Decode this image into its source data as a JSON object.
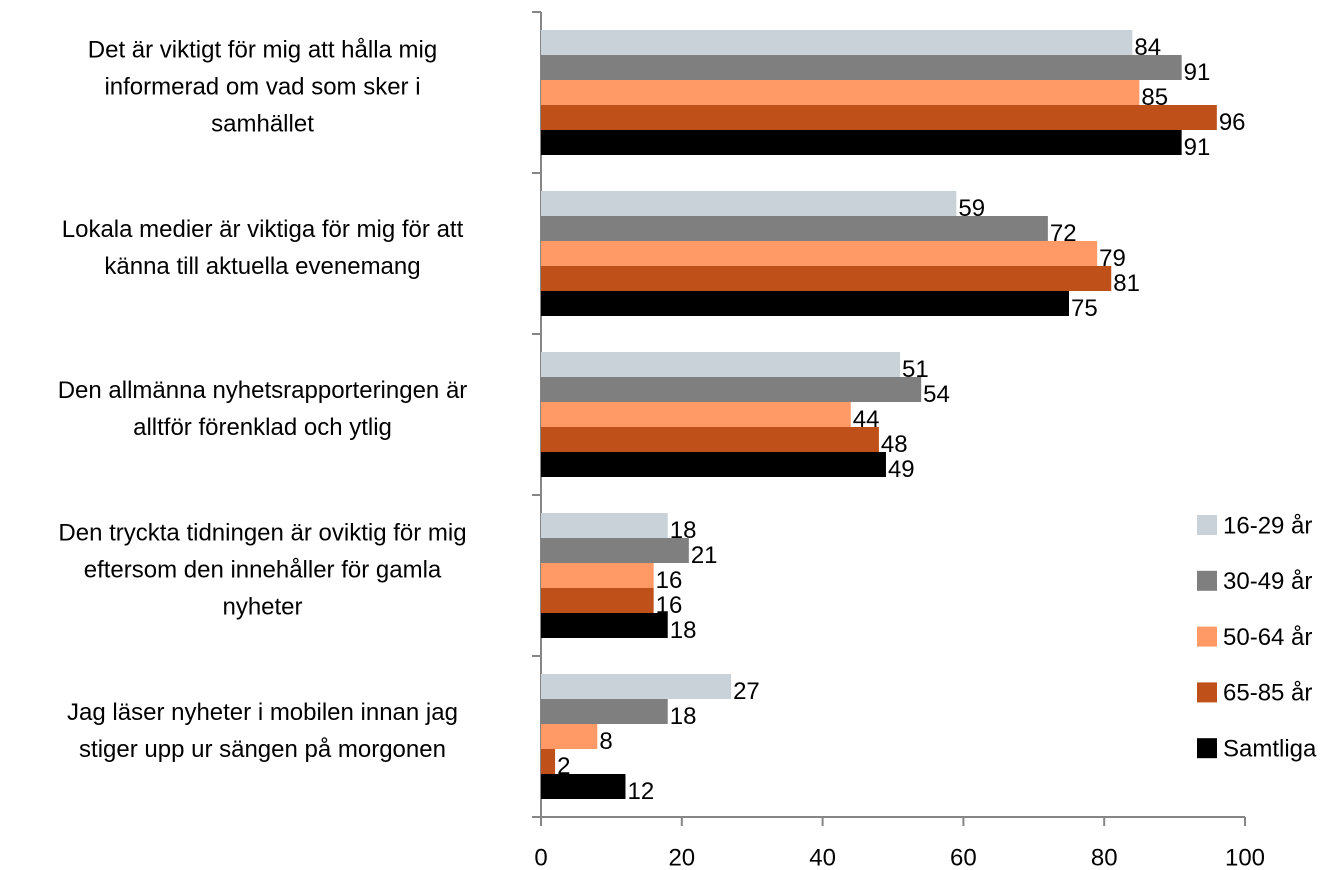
{
  "chart_data": {
    "type": "bar",
    "orientation": "horizontal",
    "categories": [
      "Det är viktigt för mig att hålla mig\ninformerad om vad som sker i\nsamhället",
      "Lokala medier är viktiga för mig för att\nkänna till aktuella evenemang",
      "Den allmänna nyhetsrapporteringen är\nalltför förenklad och ytlig",
      "Den tryckta tidningen är oviktig för mig\neftersom den innehåller för gamla\nnyheter",
      "Jag läser nyheter i mobilen innan jag\nstiger upp ur sängen på morgonen"
    ],
    "series": [
      {
        "name": "16-29 år",
        "color": "#c9d1d9",
        "values": [
          84,
          59,
          51,
          18,
          27
        ]
      },
      {
        "name": "30-49 år",
        "color": "#7f7f7f",
        "values": [
          91,
          72,
          54,
          21,
          18
        ]
      },
      {
        "name": "50-64 år",
        "color": "#ff9966",
        "values": [
          85,
          79,
          44,
          16,
          8
        ]
      },
      {
        "name": "65-85 år",
        "color": "#c0501a",
        "values": [
          96,
          81,
          48,
          16,
          2
        ]
      },
      {
        "name": "Samtliga",
        "color": "#000000",
        "values": [
          91,
          75,
          49,
          18,
          12
        ]
      }
    ],
    "xlim": [
      0,
      100
    ],
    "xticks": [
      0,
      20,
      40,
      60,
      80,
      100
    ],
    "legend": "right"
  }
}
